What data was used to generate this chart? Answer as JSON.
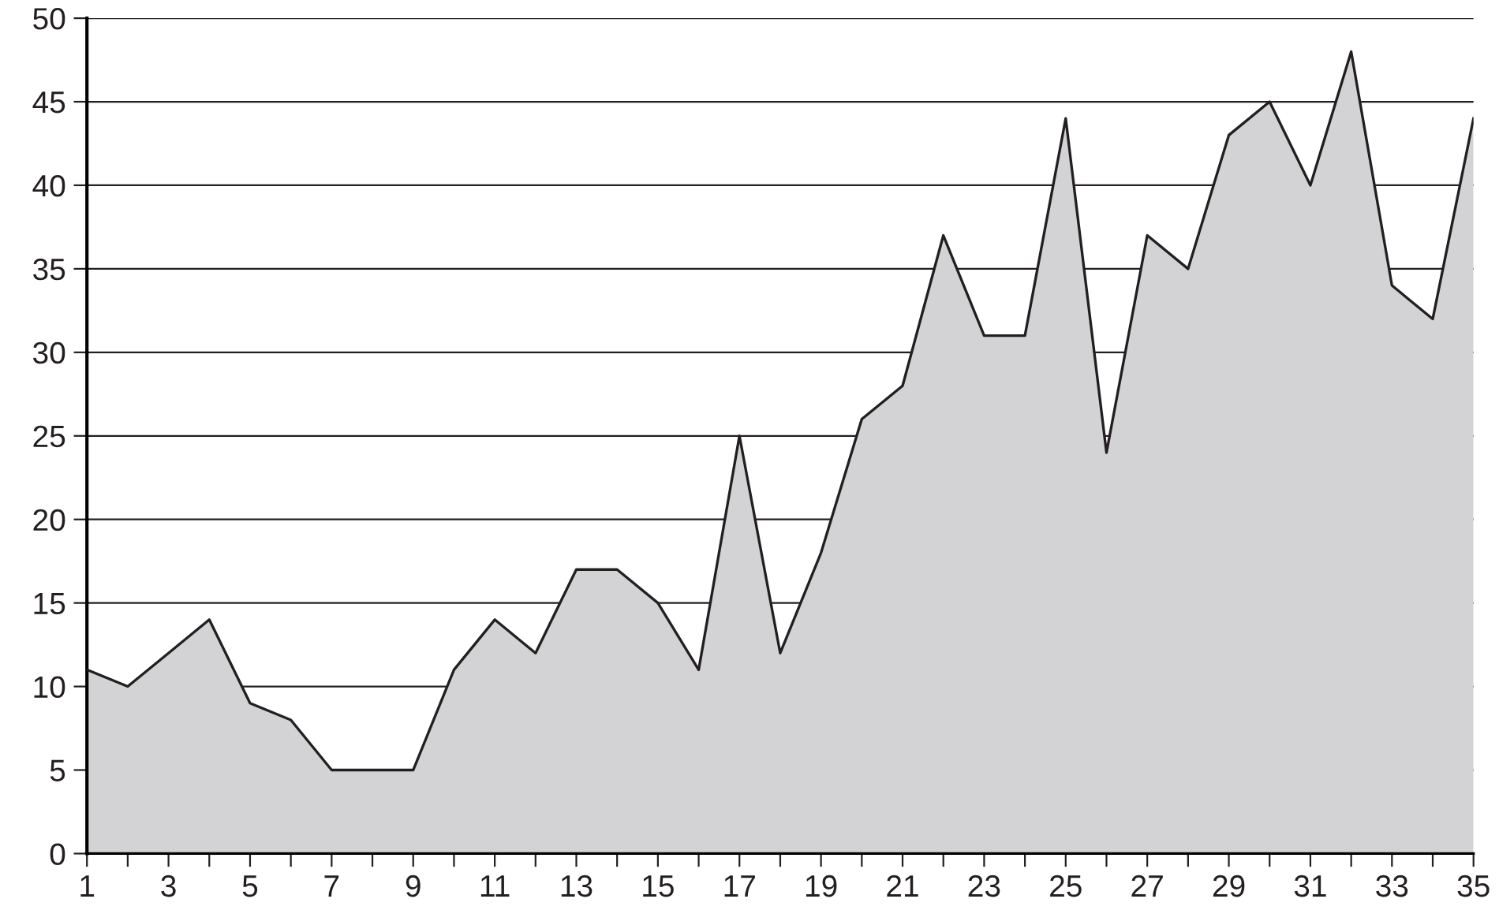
{
  "chart_data": {
    "type": "area",
    "categories": [
      "1",
      null,
      "3",
      null,
      "5",
      null,
      "7",
      null,
      "9",
      null,
      "11",
      null,
      "13",
      null,
      "15",
      null,
      "17",
      null,
      "19",
      null,
      "21",
      null,
      "23",
      null,
      "25",
      null,
      "27",
      null,
      "29",
      null,
      "31",
      null,
      "33",
      null,
      "35"
    ],
    "series": [
      {
        "color": "#d3d3d5",
        "values": [
          11,
          10,
          12,
          14,
          9,
          8,
          5,
          5,
          5,
          11,
          14,
          12,
          17,
          17,
          15,
          11,
          25,
          12,
          18,
          26,
          28,
          37,
          31,
          31,
          44,
          24,
          37,
          35,
          43,
          45,
          40,
          48,
          34,
          32,
          44
        ]
      }
    ],
    "ylim": [
      0,
      50
    ],
    "yticks": [
      0,
      5,
      10,
      15,
      20,
      25,
      30,
      35,
      40,
      45,
      50
    ],
    "grid": "y",
    "legend": false
  }
}
